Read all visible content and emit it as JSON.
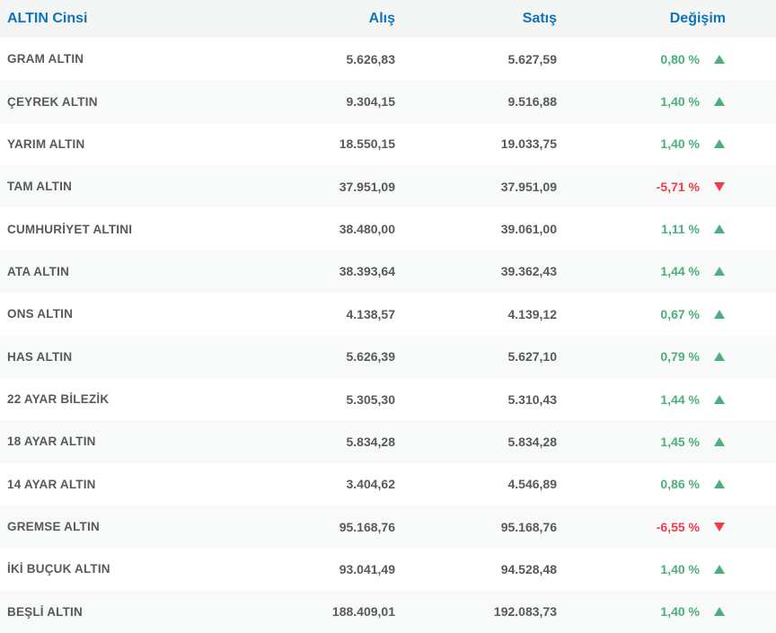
{
  "colors": {
    "accent_blue": "#0d74ba",
    "positive_green": "#4bb07b",
    "negative_red": "#f13a4a",
    "text_gray": "#58595b",
    "header_bg": "#f4f5f5",
    "stripe_bg": "#f8f9f9"
  },
  "table": {
    "columns": [
      {
        "key": "name",
        "label": "ALTIN Cinsi"
      },
      {
        "key": "buy",
        "label": "Alış"
      },
      {
        "key": "sell",
        "label": "Satış"
      },
      {
        "key": "change",
        "label": "Değişim"
      }
    ],
    "rows": [
      {
        "name": "GRAM ALTIN",
        "buy": "5.626,83",
        "sell": "5.627,59",
        "change": "0,80 %",
        "direction": "up"
      },
      {
        "name": "ÇEYREK ALTIN",
        "buy": "9.304,15",
        "sell": "9.516,88",
        "change": "1,40 %",
        "direction": "up"
      },
      {
        "name": "YARIM ALTIN",
        "buy": "18.550,15",
        "sell": "19.033,75",
        "change": "1,40 %",
        "direction": "up"
      },
      {
        "name": "TAM ALTIN",
        "buy": "37.951,09",
        "sell": "37.951,09",
        "change": "-5,71 %",
        "direction": "down"
      },
      {
        "name": "CUMHURİYET ALTINI",
        "buy": "38.480,00",
        "sell": "39.061,00",
        "change": "1,11 %",
        "direction": "up"
      },
      {
        "name": "ATA ALTIN",
        "buy": "38.393,64",
        "sell": "39.362,43",
        "change": "1,44 %",
        "direction": "up"
      },
      {
        "name": "ONS ALTIN",
        "buy": "4.138,57",
        "sell": "4.139,12",
        "change": "0,67 %",
        "direction": "up"
      },
      {
        "name": "HAS ALTIN",
        "buy": "5.626,39",
        "sell": "5.627,10",
        "change": "0,79 %",
        "direction": "up"
      },
      {
        "name": "22 AYAR BİLEZİK",
        "buy": "5.305,30",
        "sell": "5.310,43",
        "change": "1,44 %",
        "direction": "up"
      },
      {
        "name": "18 AYAR ALTIN",
        "buy": "5.834,28",
        "sell": "5.834,28",
        "change": "1,45 %",
        "direction": "up"
      },
      {
        "name": "14 AYAR ALTIN",
        "buy": "3.404,62",
        "sell": "4.546,89",
        "change": "0,86 %",
        "direction": "up"
      },
      {
        "name": "GREMSE ALTIN",
        "buy": "95.168,76",
        "sell": "95.168,76",
        "change": "-6,55 %",
        "direction": "down"
      },
      {
        "name": "İKİ BUÇUK ALTIN",
        "buy": "93.041,49",
        "sell": "94.528,48",
        "change": "1,40 %",
        "direction": "up"
      },
      {
        "name": "BEŞLİ ALTIN",
        "buy": "188.409,01",
        "sell": "192.083,73",
        "change": "1,40 %",
        "direction": "up"
      }
    ]
  }
}
